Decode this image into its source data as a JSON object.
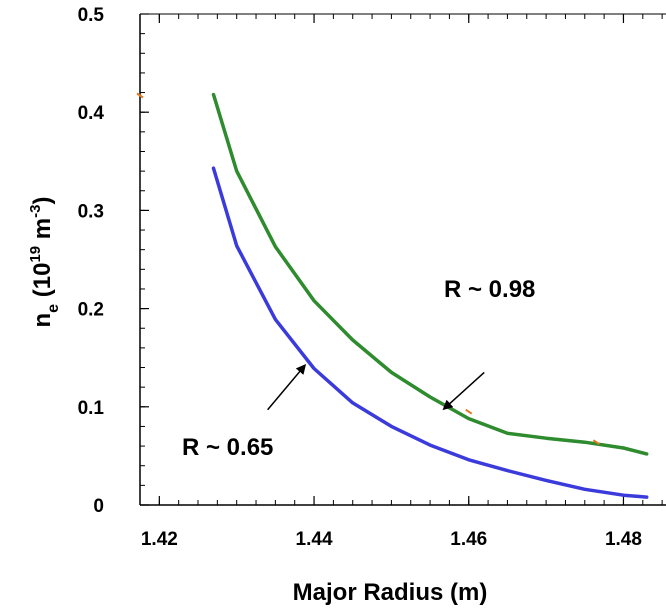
{
  "chart_data": {
    "type": "line",
    "xlabel": "Major Radius (m)",
    "ylabel_parts": {
      "main": "n",
      "sub": "e",
      "open": " (10",
      "sup1": "19",
      "unit": " m",
      "sup2": "-3",
      "close": ")"
    },
    "xlim": [
      1.4175,
      1.4855
    ],
    "ylim": [
      0,
      0.5
    ],
    "xticks": [
      1.42,
      1.44,
      1.46,
      1.48
    ],
    "xtick_labels": [
      "1.42",
      "1.44",
      "1.46",
      "1.48"
    ],
    "yticks": [
      0,
      0.1,
      0.2,
      0.3,
      0.4,
      0.5
    ],
    "ytick_labels": [
      "0",
      "0.1",
      "0.2",
      "0.3",
      "0.4",
      "0.5"
    ],
    "grid": false,
    "series": [
      {
        "color": "#2e8b2e",
        "x": [
          1.427,
          1.43,
          1.435,
          1.44,
          1.445,
          1.45,
          1.455,
          1.46,
          1.465,
          1.47,
          1.475,
          1.48,
          1.483
        ],
        "y": [
          0.418,
          0.34,
          0.263,
          0.208,
          0.168,
          0.135,
          0.11,
          0.088,
          0.073,
          0.068,
          0.064,
          0.058,
          0.052
        ]
      },
      {
        "color": "#3b3bdc",
        "x": [
          1.427,
          1.43,
          1.435,
          1.44,
          1.445,
          1.45,
          1.455,
          1.46,
          1.465,
          1.47,
          1.475,
          1.48,
          1.483
        ],
        "y": [
          0.343,
          0.264,
          0.189,
          0.139,
          0.104,
          0.08,
          0.061,
          0.046,
          0.035,
          0.025,
          0.016,
          0.01,
          0.008
        ]
      }
    ],
    "annotations": [
      {
        "text": "R ~ 0.98",
        "arrow_from": [
          1.462,
          0.135
        ],
        "arrow_to": [
          1.4568,
          0.098
        ]
      },
      {
        "text": "R ~ 0.65",
        "arrow_from": [
          1.434,
          0.097
        ],
        "arrow_to": [
          1.4388,
          0.142
        ]
      }
    ],
    "stray_marks": [
      {
        "x": 1.4175,
        "y": 0.417,
        "color": "#e07a20"
      },
      {
        "x": 1.46,
        "y": 0.095,
        "color": "#e07a20"
      },
      {
        "x": 1.4765,
        "y": 0.064,
        "color": "#e07a20"
      }
    ]
  }
}
